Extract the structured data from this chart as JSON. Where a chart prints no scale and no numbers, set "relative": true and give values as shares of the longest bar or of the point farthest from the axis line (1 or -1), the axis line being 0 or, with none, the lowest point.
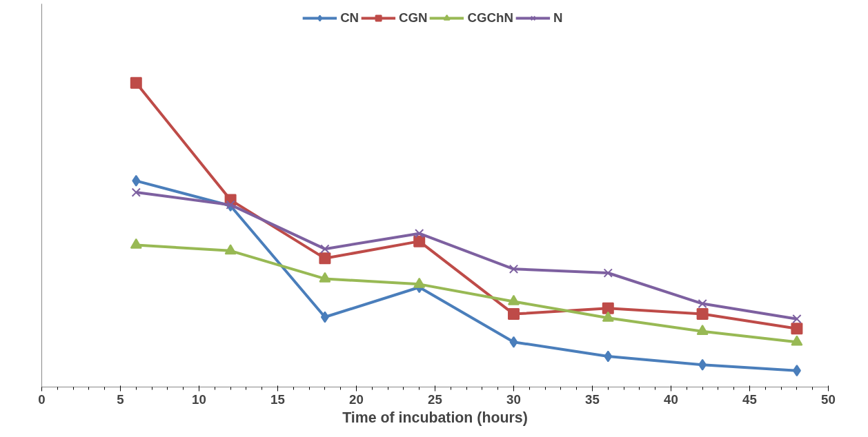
{
  "chart_data": {
    "type": "line",
    "relative": true,
    "xlabel": "Time of incubation (hours)",
    "x": [
      6,
      12,
      18,
      24,
      30,
      36,
      42,
      48
    ],
    "xlim": [
      0,
      50
    ],
    "xticks": [
      0,
      5,
      10,
      15,
      20,
      25,
      30,
      35,
      40,
      45,
      50
    ],
    "legend": "top",
    "grid": false,
    "series": [
      {
        "name": "CN",
        "color": "#4a7ebb",
        "marker": "diamond",
        "values": [
          0.678,
          0.596,
          0.23,
          0.328,
          0.148,
          0.101,
          0.073,
          0.054
        ]
      },
      {
        "name": "CGN",
        "color": "#be4b48",
        "marker": "square",
        "values": [
          1.0,
          0.615,
          0.423,
          0.479,
          0.24,
          0.259,
          0.24,
          0.192
        ]
      },
      {
        "name": "CGChN",
        "color": "#98b954",
        "marker": "triangle",
        "values": [
          0.467,
          0.448,
          0.356,
          0.338,
          0.281,
          0.227,
          0.183,
          0.148
        ]
      },
      {
        "name": "N",
        "color": "#7d60a0",
        "marker": "x",
        "values": [
          0.64,
          0.599,
          0.454,
          0.505,
          0.388,
          0.375,
          0.274,
          0.224
        ]
      }
    ]
  }
}
